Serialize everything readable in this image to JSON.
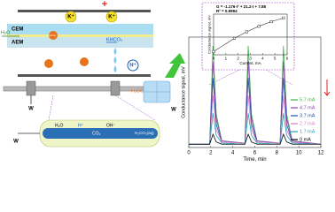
{
  "diagram": {
    "anode": "+",
    "ion_k_1": "K⁺",
    "ion_k_2": "K⁺",
    "cem": "CEM",
    "aem": "AEM",
    "water_in": "H₂O",
    "khco3": "KHCO₃",
    "hydrogen_ion": "H⁺",
    "h2co3": "H₂CO₃",
    "waste_1": "W",
    "waste_2": "W",
    "waste_3": "W",
    "bicarbonate": "HCO₃⁻",
    "tube_water": "H₂O",
    "tube_h": "H⁺",
    "tube_co2": "CO₂",
    "tube_oh": "OH⁻",
    "tube_out": "H₂CO₃(aq)"
  },
  "chart_data": [
    {
      "type": "line",
      "xlabel": "Time, min",
      "ylabel": "Conductance signal, mV",
      "x": [
        0,
        1.9,
        2.2,
        2.5,
        3.0,
        5.1,
        5.4,
        5.7,
        6.2,
        8.3,
        8.6,
        8.9,
        9.4,
        12
      ],
      "xlim": [
        0,
        12
      ],
      "xticks": [
        0,
        2,
        4,
        6,
        8,
        10,
        12
      ],
      "ylim": [
        0,
        100
      ],
      "legend": "right",
      "series": [
        {
          "name": "5.7 mA",
          "color": "#3cb04a",
          "values": [
            3,
            3,
            92,
            30,
            6,
            4,
            92,
            30,
            6,
            4,
            92,
            30,
            6,
            3
          ]
        },
        {
          "name": "4.7 mA",
          "color": "#8e44ad",
          "values": [
            3,
            3,
            78,
            26,
            6,
            4,
            78,
            26,
            6,
            4,
            78,
            26,
            6,
            3
          ]
        },
        {
          "name": "3.7 mA",
          "color": "#1f4fa8",
          "values": [
            3,
            3,
            63,
            21,
            5,
            4,
            63,
            21,
            5,
            4,
            63,
            21,
            5,
            3
          ]
        },
        {
          "name": "2.7 mA",
          "color": "#e377c2",
          "values": [
            3,
            3,
            47,
            16,
            5,
            4,
            47,
            16,
            5,
            4,
            47,
            16,
            5,
            3
          ]
        },
        {
          "name": "1.7 mA",
          "color": "#17a2b8",
          "values": [
            3,
            3,
            31,
            11,
            4,
            3,
            31,
            11,
            4,
            3,
            31,
            11,
            4,
            3
          ]
        },
        {
          "name": "0 mA",
          "color": "#000000",
          "values": [
            3,
            3,
            12,
            5,
            3,
            3,
            12,
            5,
            3,
            3,
            12,
            5,
            3,
            3
          ]
        }
      ]
    },
    {
      "type": "scatter",
      "xlabel": "Current, mA",
      "ylabel": "Conductance signal, mV",
      "equation": "G = -1.176·I² + 21.2·I + 7.85",
      "r2": "R² = 0.9994",
      "x": [
        0,
        1.7,
        2.7,
        3.7,
        4.7,
        5.7
      ],
      "values": [
        7.85,
        40.5,
        56.5,
        70.2,
        81.5,
        90.5
      ],
      "xlim": [
        0,
        6
      ],
      "xticks": [
        0,
        1,
        2,
        3,
        4,
        5,
        6
      ],
      "ylim": [
        0,
        100
      ],
      "color": "#333333"
    }
  ]
}
